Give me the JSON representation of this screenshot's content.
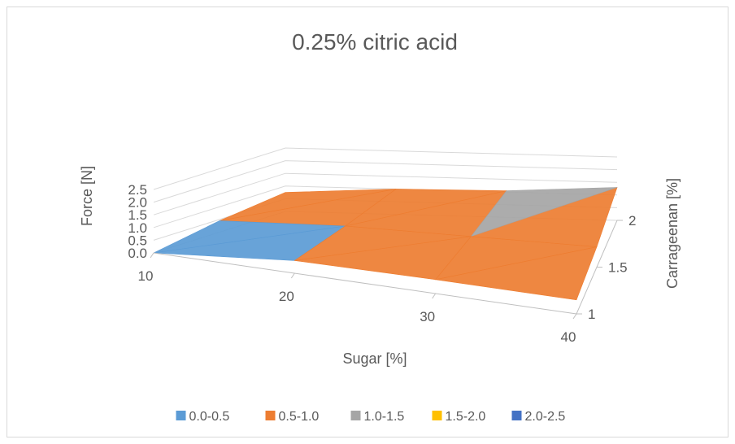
{
  "chart_data": {
    "type": "surface",
    "title": "0.25% citric acid",
    "xlabel": "Sugar [%]",
    "ylabel": "Force [N]",
    "zlabel": "Carrageenan [%]",
    "x": [
      10,
      20,
      30,
      40
    ],
    "z": [
      1,
      1.5,
      2
    ],
    "y_ticks": [
      "0.0",
      "0.5",
      "1.0",
      "1.5",
      "2.0",
      "2.5"
    ],
    "x_ticks": [
      "10",
      "20",
      "30",
      "40"
    ],
    "z_ticks": [
      "1",
      "1.5",
      "2"
    ],
    "ylim": [
      0,
      2.5
    ],
    "values": [
      [
        0.0,
        0.45,
        0.75
      ],
      [
        0.5,
        0.7,
        1.0
      ],
      [
        0.55,
        0.75,
        1.05
      ],
      [
        0.55,
        0.8,
        1.3
      ]
    ],
    "bands": [
      {
        "name": "0.0-0.5",
        "color": "#5b9bd5"
      },
      {
        "name": "0.5-1.0",
        "color": "#ed7d31"
      },
      {
        "name": "1.0-1.5",
        "color": "#a5a5a5"
      },
      {
        "name": "1.5-2.0",
        "color": "#ffc000"
      },
      {
        "name": "2.0-2.5",
        "color": "#4472c4"
      }
    ],
    "legend_position": "bottom"
  }
}
